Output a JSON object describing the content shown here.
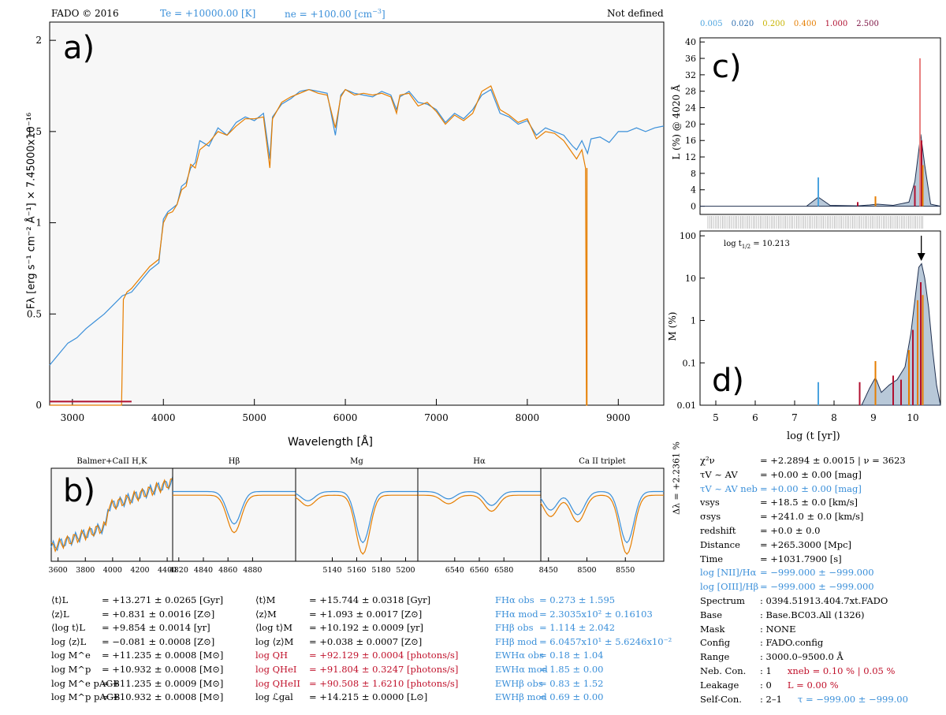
{
  "header": {
    "program": "FADO © 2016",
    "te": "Te = +10000.00 [K]",
    "ne": "ne = +100.00 [cm",
    "ne_exp": "−3",
    "ne_close": "]",
    "status": "Not defined",
    "z_legend": [
      {
        "label": "0.005",
        "color": "#4aa3df"
      },
      {
        "label": "0.020",
        "color": "#2f6fb0"
      },
      {
        "label": "0.200",
        "color": "#c8b400"
      },
      {
        "label": "0.400",
        "color": "#e67e00"
      },
      {
        "label": "1.000",
        "color": "#b01030"
      },
      {
        "label": "2.500",
        "color": "#7a1040"
      }
    ]
  },
  "panel_labels": {
    "a": "a)",
    "b": "b)",
    "c": "c)",
    "d": "d)"
  },
  "chart_data": [
    {
      "id": "a",
      "type": "line",
      "xlabel": "Wavelength [Å]",
      "ylabel": "F_λ [erg s⁻¹ cm⁻² Å⁻¹] × 7.45000x10⁻¹⁶",
      "ylabel_text": "Fλ [erg s⁻¹ cm⁻² Å⁻¹] × 7.45000x10⁻¹⁶",
      "xlim": [
        2750,
        9500
      ],
      "ylim": [
        0,
        2.1
      ],
      "xticks": [
        3000,
        4000,
        5000,
        6000,
        7000,
        8000,
        9000
      ],
      "yticks": [
        0,
        0.5,
        1,
        1.5,
        2
      ],
      "ytick_labels": [
        "0",
        "0.5",
        "1",
        "1.5",
        "2"
      ],
      "series": [
        {
          "color": "#3a8fd9",
          "x": [
            2750,
            2850,
            2950,
            3050,
            3150,
            3250,
            3350,
            3450,
            3550,
            3650,
            3750,
            3850,
            3950,
            4000,
            4050,
            4100,
            4150,
            4200,
            4250,
            4300,
            4350,
            4400,
            4500,
            4600,
            4700,
            4800,
            4900,
            5000,
            5100,
            5170,
            5200,
            5300,
            5400,
            5500,
            5600,
            5700,
            5800,
            5890,
            5950,
            6000,
            6100,
            6200,
            6300,
            6400,
            6500,
            6563,
            6600,
            6700,
            6800,
            6900,
            7000,
            7100,
            7200,
            7300,
            7400,
            7500,
            7600,
            7700,
            7800,
            7900,
            8000,
            8100,
            8200,
            8300,
            8400,
            8498,
            8542,
            8600,
            8662,
            8700,
            8800,
            8900,
            9000,
            9100,
            9200,
            9300,
            9400,
            9500
          ],
          "y": [
            0.22,
            0.28,
            0.34,
            0.37,
            0.42,
            0.46,
            0.5,
            0.55,
            0.6,
            0.62,
            0.68,
            0.74,
            0.78,
            1.02,
            1.06,
            1.08,
            1.1,
            1.2,
            1.22,
            1.3,
            1.33,
            1.45,
            1.42,
            1.52,
            1.48,
            1.55,
            1.58,
            1.56,
            1.6,
            1.35,
            1.58,
            1.65,
            1.68,
            1.72,
            1.73,
            1.72,
            1.71,
            1.48,
            1.7,
            1.73,
            1.71,
            1.7,
            1.69,
            1.72,
            1.7,
            1.62,
            1.69,
            1.72,
            1.66,
            1.65,
            1.62,
            1.55,
            1.6,
            1.57,
            1.62,
            1.7,
            1.73,
            1.6,
            1.58,
            1.54,
            1.56,
            1.48,
            1.52,
            1.5,
            1.48,
            1.42,
            1.4,
            1.45,
            1.38,
            1.46,
            1.47,
            1.44,
            1.5,
            1.5,
            1.52,
            1.5,
            1.52,
            1.53
          ]
        },
        {
          "color": "#e67e00",
          "x": [
            2750,
            3540,
            3560,
            3600,
            3650,
            3750,
            3850,
            3950,
            4000,
            4050,
            4100,
            4150,
            4200,
            4250,
            4300,
            4350,
            4400,
            4500,
            4600,
            4700,
            4800,
            4900,
            5000,
            5100,
            5170,
            5200,
            5300,
            5400,
            5500,
            5600,
            5700,
            5800,
            5890,
            5950,
            6000,
            6100,
            6200,
            6300,
            6400,
            6500,
            6563,
            6600,
            6700,
            6800,
            6900,
            7000,
            7100,
            7200,
            7300,
            7400,
            7500,
            7600,
            7700,
            7800,
            7900,
            8000,
            8100,
            8200,
            8300,
            8400,
            8498,
            8542,
            8600,
            8640,
            8650,
            8660
          ],
          "y": [
            0.0,
            0.0,
            0.58,
            0.62,
            0.64,
            0.7,
            0.76,
            0.8,
            1.0,
            1.05,
            1.06,
            1.1,
            1.18,
            1.2,
            1.32,
            1.3,
            1.4,
            1.44,
            1.5,
            1.48,
            1.53,
            1.57,
            1.57,
            1.58,
            1.3,
            1.57,
            1.66,
            1.69,
            1.71,
            1.73,
            1.71,
            1.7,
            1.52,
            1.69,
            1.73,
            1.7,
            1.71,
            1.7,
            1.71,
            1.69,
            1.6,
            1.7,
            1.71,
            1.64,
            1.66,
            1.61,
            1.54,
            1.59,
            1.56,
            1.6,
            1.72,
            1.75,
            1.62,
            1.59,
            1.55,
            1.57,
            1.46,
            1.5,
            1.49,
            1.45,
            1.38,
            1.35,
            1.4,
            1.3,
            0.0,
            0.0
          ]
        },
        {
          "color": "#b01030",
          "x": [
            2750,
            3650
          ],
          "y": [
            0.02,
            0.02
          ]
        }
      ]
    },
    {
      "id": "b",
      "type": "line",
      "windows": [
        {
          "title": "Balmer+CaII H,K",
          "xlim": [
            3550,
            4440
          ],
          "xticks": [
            3600,
            3800,
            4000,
            4200,
            4400
          ],
          "ylim": [
            0,
            1
          ]
        },
        {
          "title": "Hβ",
          "xlim": [
            4815,
            4915
          ],
          "xticks": [
            4820,
            4840,
            4860,
            4880
          ],
          "ylim": [
            0,
            1
          ]
        },
        {
          "title": "Mg",
          "xlim": [
            5110,
            5210
          ],
          "xticks": [
            5140,
            5160,
            5180,
            5200
          ],
          "ylim": [
            0,
            1
          ]
        },
        {
          "title": "Hα",
          "xlim": [
            6510,
            6610
          ],
          "xticks": [
            6540,
            6560,
            6580
          ],
          "ylim": [
            0,
            1
          ]
        },
        {
          "title": "Ca II triplet",
          "xlim": [
            8440,
            8600
          ],
          "xticks": [
            8450,
            8500,
            8550
          ],
          "ylim": [
            0,
            1
          ]
        }
      ]
    },
    {
      "id": "c",
      "type": "area",
      "ylabel": "L (%) @ 4020 Å",
      "ylim": [
        -2,
        41
      ],
      "yticks": [
        0,
        4,
        8,
        12,
        16,
        20,
        24,
        28,
        32,
        36,
        40
      ],
      "envelope": {
        "x": [
          4.6,
          7.3,
          7.6,
          7.9,
          8.6,
          8.9,
          9.1,
          9.5,
          9.9,
          10.05,
          10.2,
          10.3,
          10.45,
          10.7
        ],
        "y": [
          0,
          0,
          2.2,
          0.2,
          0.1,
          0.3,
          0.5,
          0.2,
          1.0,
          6.0,
          17.5,
          10.0,
          0.5,
          0.0
        ]
      },
      "bars": [
        {
          "x": 7.6,
          "h": 7,
          "color": "#4aa3df"
        },
        {
          "x": 8.6,
          "h": 1,
          "color": "#b01030"
        },
        {
          "x": 9.05,
          "h": 2.4,
          "color": "#e67e00"
        },
        {
          "x": 10.05,
          "h": 5,
          "color": "#b01030"
        },
        {
          "x": 10.18,
          "h": 36,
          "color": "#e88080"
        },
        {
          "x": 10.22,
          "h": 16,
          "color": "#b01030"
        },
        {
          "x": 10.25,
          "h": 10,
          "color": "#e67e00"
        }
      ]
    },
    {
      "id": "d",
      "type": "area",
      "ylabel": "M (%)",
      "xlabel": "log (t [yr])",
      "yscale": "log",
      "ylim": [
        0.01,
        130
      ],
      "yticks": [
        0.01,
        0.1,
        1,
        10,
        100
      ],
      "ytick_labels": [
        "0.01",
        "0.1",
        "1",
        "10",
        "100"
      ],
      "xlim": [
        4.6,
        10.7
      ],
      "xticks": [
        5,
        6,
        7,
        8,
        9,
        10
      ],
      "envelope": {
        "x": [
          8.7,
          8.9,
          9.05,
          9.2,
          9.4,
          9.6,
          9.8,
          9.95,
          10.05,
          10.15,
          10.22,
          10.3,
          10.4,
          10.5,
          10.6,
          10.7
        ],
        "y": [
          0.01,
          0.025,
          0.045,
          0.02,
          0.03,
          0.04,
          0.08,
          0.5,
          3.0,
          18,
          22,
          10,
          2,
          0.2,
          0.03,
          0.01
        ]
      },
      "bars": [
        {
          "x": 7.6,
          "h": 0.035,
          "color": "#4aa3df"
        },
        {
          "x": 8.65,
          "h": 0.035,
          "color": "#b01030"
        },
        {
          "x": 9.05,
          "h": 0.11,
          "color": "#e67e00"
        },
        {
          "x": 9.5,
          "h": 0.05,
          "color": "#b01030"
        },
        {
          "x": 9.7,
          "h": 0.04,
          "color": "#b01030"
        },
        {
          "x": 9.9,
          "h": 0.2,
          "color": "#e67e00"
        },
        {
          "x": 10.0,
          "h": 0.6,
          "color": "#b01030"
        },
        {
          "x": 10.12,
          "h": 3.0,
          "color": "#e67e00"
        },
        {
          "x": 10.2,
          "h": 8,
          "color": "#b01030"
        },
        {
          "x": 10.25,
          "h": 4,
          "color": "#e67e00"
        }
      ],
      "annotation": "log t",
      "annotation_sub": "1/2",
      "annotation_val": "= 10.213"
    }
  ],
  "delta_label": "Δλ = +2.2361 %",
  "stats_left": [
    {
      "name": "⟨t⟩L",
      "value": "= +13.271 ± 0.0265 [Gyr]"
    },
    {
      "name": "⟨z⟩L",
      "value": "= +0.831 ± 0.0016 [Z⊙]"
    },
    {
      "name": "⟨log t⟩L",
      "value": "= +9.854 ± 0.0014 [yr]"
    },
    {
      "name": "log ⟨z⟩L",
      "value": "= −0.081 ± 0.0008 [Z⊙]"
    },
    {
      "name": "log M^e",
      "value": "= +11.235 ± 0.0008 [M⊙]"
    },
    {
      "name": "log M^p",
      "value": "= +10.932 ± 0.0008 [M⊙]"
    },
    {
      "name": "log M^e pAGB",
      "value": "= +11.235 ± 0.0009 [M⊙]"
    },
    {
      "name": "log M^p pAGB",
      "value": "= +10.932 ± 0.0008 [M⊙]"
    }
  ],
  "stats_mid": [
    {
      "name": "⟨t⟩M",
      "value": "= +15.744 ± 0.0318 [Gyr]",
      "color": "#000"
    },
    {
      "name": "⟨z⟩M",
      "value": "= +1.093 ± 0.0017 [Z⊙]",
      "color": "#000"
    },
    {
      "name": "⟨log t⟩M",
      "value": "= +10.192 ± 0.0009 [yr]",
      "color": "#000"
    },
    {
      "name": "log ⟨z⟩M",
      "value": "= +0.038 ± 0.0007 [Z⊙]",
      "color": "#000"
    },
    {
      "name": "log QH",
      "value": "= +92.129 ± 0.0004 [photons/s]",
      "color": "#c0102a"
    },
    {
      "name": "log QHeI",
      "value": "= +91.804 ± 0.3247 [photons/s]",
      "color": "#c0102a"
    },
    {
      "name": "log QHeII",
      "value": "= +90.508 ± 1.6210 [photons/s]",
      "color": "#c0102a"
    },
    {
      "name": "log ℒgal",
      "value": "= +14.215 ± 0.0000 [L⊙]",
      "color": "#000"
    }
  ],
  "stats_lines": [
    {
      "name": "FHα obs",
      "value": "= 0.273 ± 1.595"
    },
    {
      "name": "FHα mod",
      "value": "= 2.3035x10² ± 0.16103"
    },
    {
      "name": "FHβ obs",
      "value": "= 1.114 ± 2.042"
    },
    {
      "name": "FHβ mod",
      "value": "= 6.0457x10¹ ± 5.6246x10⁻²"
    },
    {
      "name": "EWHα obs",
      "value": "= 0.18 ± 1.04"
    },
    {
      "name": "EWHα mod",
      "value": "= 1.85 ± 0.00"
    },
    {
      "name": "EWHβ obs",
      "value": "= 0.83 ± 1.52"
    },
    {
      "name": "EWHβ mod",
      "value": "= 0.69 ± 0.00"
    }
  ],
  "stats_right": [
    {
      "name": "χ²ν",
      "value": "= +2.2894 ± 0.0015 | ν = 3623",
      "color": "#000"
    },
    {
      "name": "τV ~ AV",
      "value": "= +0.00 ± 0.00 [mag]",
      "color": "#000"
    },
    {
      "name": "τV ~ AV neb",
      "value": "= +0.00 ± 0.00 [mag]",
      "color": "#3a8fd9"
    },
    {
      "name": "vsys",
      "value": "= +18.5 ± 0.0 [km/s]",
      "color": "#000"
    },
    {
      "name": "σsys",
      "value": "= +241.0 ± 0.0 [km/s]",
      "color": "#000"
    },
    {
      "name": "redshift",
      "value": "= +0.0 ± 0.0",
      "color": "#000"
    },
    {
      "name": "Distance",
      "value": "= +265.3000 [Mpc]",
      "color": "#000"
    },
    {
      "name": "Time",
      "value": "= +1031.7900 [s]",
      "color": "#000"
    },
    {
      "name": "log [NII]/Hα",
      "value": "= −999.000 ± −999.000",
      "color": "#3a8fd9"
    },
    {
      "name": "log [OIII]/Hβ",
      "value": "= −999.000 ± −999.000",
      "color": "#3a8fd9"
    },
    {
      "name": "Spectrum",
      "value": ": 0394.51913.404.7xt.FADO",
      "color": "#000"
    },
    {
      "name": "Base",
      "value": ": Base.BC03.All (1326)",
      "color": "#000"
    },
    {
      "name": "Mask",
      "value": ": NONE",
      "color": "#000"
    },
    {
      "name": "Config",
      "value": ": FADO.config",
      "color": "#000"
    },
    {
      "name": "Range",
      "value": ": 3000.0–9500.0 Å",
      "color": "#000"
    },
    {
      "name": "Neb. Con.",
      "value": ":  1",
      "extra": "xneb = 0.10 % | 0.05 %",
      "color": "#000"
    },
    {
      "name": "Leakage",
      "value": ":  0",
      "extra": "L     = 0.00 %",
      "color": "#000"
    },
    {
      "name": "Self-Con.",
      "value": ":  2–1",
      "extra": "τ    = −999.00 ± −999.00",
      "color": "#000"
    }
  ]
}
